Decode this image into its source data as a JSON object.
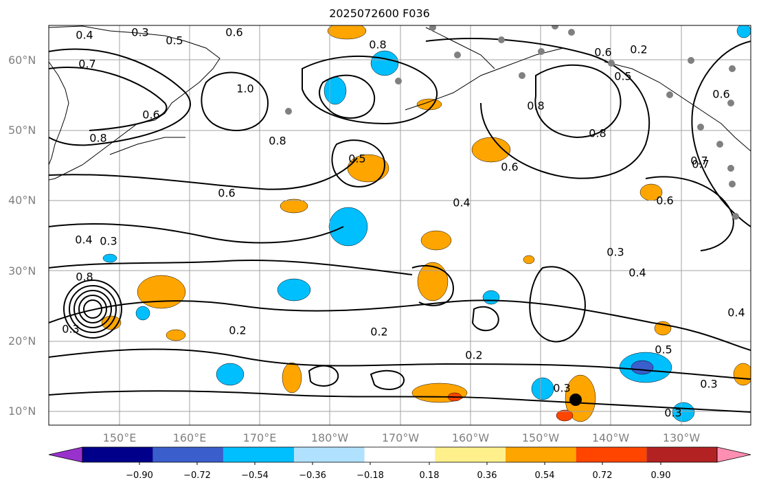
{
  "title": "2025072600 F036",
  "lat_labels": [
    "60°N",
    "50°N",
    "40°N",
    "30°N",
    "20°N",
    "10°N"
  ],
  "lon_labels": [
    "150°E",
    "160°E",
    "170°E",
    "180°W",
    "170°W",
    "160°W",
    "150°W",
    "140°W",
    "130°W"
  ],
  "contour_labels": [
    "0.4",
    "0.3",
    "0.6",
    "0.5",
    "0.7",
    "0.8",
    "1.0",
    "0.6",
    "0.8",
    "0.8",
    "0.6",
    "0.4",
    "0.3",
    "0.8",
    "0.8",
    "0.6",
    "0.5",
    "0.4",
    "0.3",
    "0.2",
    "0.2",
    "0.2",
    "0.3",
    "0.5",
    "0.3",
    "0.3",
    "0.4",
    "0.5",
    "0.6",
    "0.7",
    "0.6",
    "0.8",
    "0.7",
    "0.6",
    "0.4",
    "0.3",
    "0.2"
  ],
  "colorbar": {
    "ticks": [
      "−0.90",
      "−0.72",
      "−0.54",
      "−0.36",
      "−0.18",
      "0.18",
      "0.36",
      "0.54",
      "0.72",
      "0.90"
    ],
    "colors": [
      "#9932cc",
      "#00008b",
      "#3a5fcd",
      "#00bfff",
      "#b0e2ff",
      "#ffffff",
      "#fff08b",
      "#ffa500",
      "#ff4500",
      "#b22222",
      "#ff8fb2"
    ]
  },
  "fill_colors": {
    "pos_light": "#ffa500",
    "pos_mid": "#ff4500",
    "neg_light": "#00bfff",
    "neg_mid": "#3a5fcd"
  },
  "grid_color": "#a0a0a0",
  "contour_color": "#000000"
}
